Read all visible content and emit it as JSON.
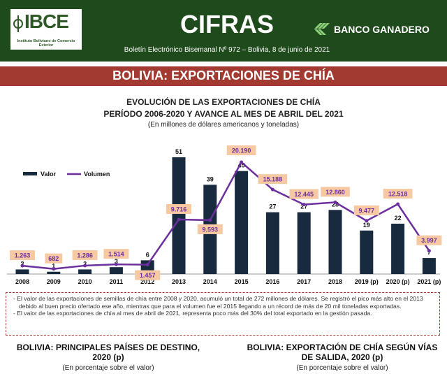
{
  "header": {
    "logo_text": "IBCE",
    "logo_subtitle": "Instituto Boliviano de Comercio Exterior",
    "title": "CIFRAS",
    "bulletin": "Boletín Electrónico Bisemanal Nº 972 – Bolivia, 8 de junio de 2021",
    "bank": "BANCO GANADERO"
  },
  "banner": {
    "title": "BOLIVIA: EXPORTACIONES DE CHÍA"
  },
  "chart_section": {
    "title_line1": "EVOLUCIÓN DE LAS EXPORTACIONES DE CHÍA",
    "title_line2": "PERÍODO 2006-2020 Y AVANCE AL MES DE ABRIL DEL 2021",
    "subtitle": "(En millones de dólares americanos y toneladas)"
  },
  "colors": {
    "bar": "#172a3e",
    "line": "#6b2f9e",
    "label_box": "#f7c9a3",
    "header_green": "#1f4a1c",
    "banner_red": "#a33a32"
  },
  "chart_data": {
    "type": "bar+line",
    "categories": [
      "2008",
      "2009",
      "2010",
      "2011",
      "2012",
      "2013",
      "2014",
      "2015",
      "2016",
      "2017",
      "2018",
      "2019 (p)",
      "2020 (p)",
      "2021 (p)"
    ],
    "series": [
      {
        "name": "Valor",
        "type": "bar",
        "values": [
          2,
          1,
          2,
          3,
          6,
          51,
          39,
          45,
          27,
          27,
          28,
          19,
          22,
          7
        ]
      },
      {
        "name": "Volumen",
        "type": "line",
        "values": [
          1263,
          682,
          1286,
          1514,
          1457,
          9716,
          9593,
          20190,
          15188,
          12445,
          12860,
          9477,
          12518,
          3997
        ],
        "labels": [
          "1.263",
          "682",
          "1.286",
          "1.514",
          "1.457",
          "9.716",
          "9.593",
          "20.190",
          "15.188",
          "12.445",
          "12.860",
          "9.477",
          "12.518",
          "3.997"
        ]
      }
    ],
    "legend": [
      "Valor",
      "Volumen"
    ],
    "legend_position": "top-left",
    "grid": false
  },
  "notes": [
    "El valor de las exportaciones de semillas de chía entre 2008 y 2020, acumuló un total de 272 millones de dólares. Se registró el pico más alto en el 2013 debido al buen precio ofertado ese año, mientras que para el volumen fue el 2015 llegando a un récord de más de 20 mil toneladas exportadas.",
    "El valor de las exportaciones de chía al mes de abril de 2021, representa poco más del 30% del total exportado en la gestión pasada."
  ],
  "bottom": {
    "left_title": "BOLIVIA: PRINCIPALES PAÍSES DE DESTINO, 2020 (p)",
    "left_sub": "(En porcentaje sobre el valor)",
    "right_title": "BOLIVIA: EXPORTACIÓN DE CHÍA SEGÚN VÍAS DE SALIDA, 2020 (p)",
    "right_sub": "(En porcentaje sobre el valor)"
  }
}
